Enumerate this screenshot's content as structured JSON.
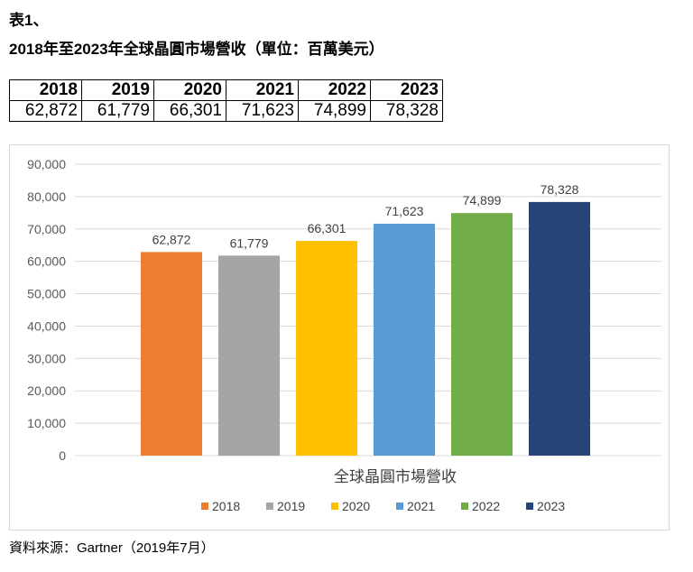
{
  "header": {
    "label": "表1、",
    "title": "2018年至2023年全球晶圓市場營收（單位：百萬美元）"
  },
  "table": {
    "years": [
      "2018",
      "2019",
      "2020",
      "2021",
      "2022",
      "2023"
    ],
    "values": [
      "62,872",
      "61,779",
      "66,301",
      "71,623",
      "74,899",
      "78,328"
    ]
  },
  "chart_data": {
    "type": "bar",
    "xlabel": "全球晶圓市場營收",
    "ylim": [
      0,
      90000
    ],
    "yticks": [
      0,
      10000,
      20000,
      30000,
      40000,
      50000,
      60000,
      70000,
      80000,
      90000
    ],
    "grid": true,
    "legend_position": "bottom",
    "series": [
      {
        "name": "2018",
        "value": 62872,
        "label": "62,872",
        "color": "#ED7D31"
      },
      {
        "name": "2019",
        "value": 61779,
        "label": "61,779",
        "color": "#A5A5A5"
      },
      {
        "name": "2020",
        "value": 66301,
        "label": "66,301",
        "color": "#FFC000"
      },
      {
        "name": "2021",
        "value": 71623,
        "label": "71,623",
        "color": "#5B9BD5"
      },
      {
        "name": "2022",
        "value": 74899,
        "label": "74,899",
        "color": "#70AD47"
      },
      {
        "name": "2023",
        "value": 78328,
        "label": "78,328",
        "color": "#264478"
      }
    ]
  },
  "footer": {
    "source": "資料來源：Gartner（2019年7月）"
  }
}
